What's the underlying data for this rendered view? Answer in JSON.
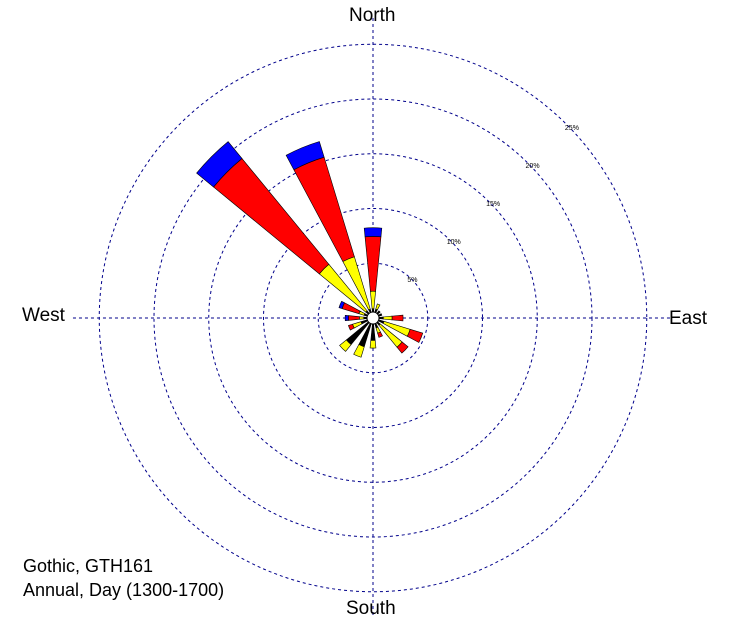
{
  "chart_data": {
    "type": "polar-bar",
    "directions": {
      "north": "North",
      "south": "South",
      "east": "East",
      "west": "West"
    },
    "ring_values": [
      5,
      10,
      15,
      20,
      25
    ],
    "ring_labels": [
      "5%",
      "10%",
      "15%",
      "20%",
      "25%"
    ],
    "grid": true,
    "colors": {
      "band1": "#000000",
      "band2": "#ffff00",
      "band3": "#ff0000",
      "band4": "#0000ff",
      "grid": "#00008b"
    },
    "stack_order": [
      "band1",
      "band2",
      "band3",
      "band4"
    ],
    "bins": [
      {
        "direction": 0,
        "segments": [
          0.3,
          1.6,
          5.0,
          0.8
        ]
      },
      {
        "direction": 22.5,
        "segments": [
          0.3,
          0.5,
          0.0,
          0.0
        ]
      },
      {
        "direction": 45,
        "segments": [
          0.3,
          0.0,
          0.0,
          0.0
        ]
      },
      {
        "direction": 67.5,
        "segments": [
          0.3,
          0.0,
          0.0,
          0.0
        ]
      },
      {
        "direction": 90,
        "segments": [
          0.4,
          0.8,
          1.0,
          0.0
        ]
      },
      {
        "direction": 112.5,
        "segments": [
          0.5,
          2.5,
          1.2,
          0.0
        ]
      },
      {
        "direction": 135,
        "segments": [
          0.3,
          2.6,
          0.7,
          0.0
        ]
      },
      {
        "direction": 157.5,
        "segments": [
          0.4,
          0.5,
          0.4,
          0.0
        ]
      },
      {
        "direction": 180,
        "segments": [
          1.5,
          0.7,
          0.0,
          0.0
        ]
      },
      {
        "direction": 202.5,
        "segments": [
          2.2,
          1.0,
          0.0,
          0.0
        ]
      },
      {
        "direction": 225,
        "segments": [
          2.6,
          0.8,
          0.0,
          0.0
        ]
      },
      {
        "direction": 247.5,
        "segments": [
          0.6,
          0.8,
          0.4,
          0.0
        ]
      },
      {
        "direction": 270,
        "segments": [
          0.3,
          0.4,
          1.0,
          0.3
        ]
      },
      {
        "direction": 292.5,
        "segments": [
          0.3,
          0.5,
          1.6,
          0.3
        ]
      },
      {
        "direction": 315,
        "segments": [
          0.3,
          5.5,
          12.5,
          2.0
        ]
      },
      {
        "direction": 337.5,
        "segments": [
          0.3,
          5.0,
          9.5,
          1.5
        ]
      }
    ]
  },
  "caption": {
    "line1": "Gothic, GTH161",
    "line2": "Annual, Day (1300-1700)"
  }
}
